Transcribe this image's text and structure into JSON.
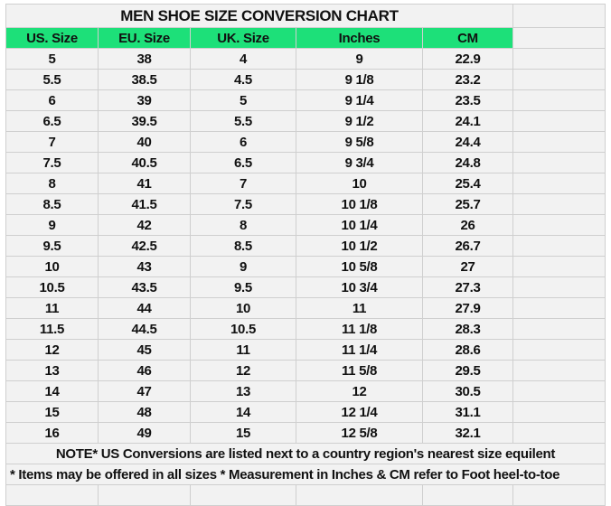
{
  "title": "MEN SHOE SIZE CONVERSION CHART",
  "columns": [
    "US. Size",
    "EU. Size",
    "UK. Size",
    "Inches",
    "CM"
  ],
  "rows": [
    [
      "5",
      "38",
      "4",
      "9",
      "22.9"
    ],
    [
      "5.5",
      "38.5",
      "4.5",
      "9 1/8",
      "23.2"
    ],
    [
      "6",
      "39",
      "5",
      "9 1/4",
      "23.5"
    ],
    [
      "6.5",
      "39.5",
      "5.5",
      "9 1/2",
      "24.1"
    ],
    [
      "7",
      "40",
      "6",
      "9 5/8",
      "24.4"
    ],
    [
      "7.5",
      "40.5",
      "6.5",
      "9 3/4",
      "24.8"
    ],
    [
      "8",
      "41",
      "7",
      "10",
      "25.4"
    ],
    [
      "8.5",
      "41.5",
      "7.5",
      "10 1/8",
      "25.7"
    ],
    [
      "9",
      "42",
      "8",
      "10 1/4",
      "26"
    ],
    [
      "9.5",
      "42.5",
      "8.5",
      "10 1/2",
      "26.7"
    ],
    [
      "10",
      "43",
      "9",
      "10 5/8",
      "27"
    ],
    [
      "10.5",
      "43.5",
      "9.5",
      "10 3/4",
      "27.3"
    ],
    [
      "11",
      "44",
      "10",
      "11",
      "27.9"
    ],
    [
      "11.5",
      "44.5",
      "10.5",
      "11 1/8",
      "28.3"
    ],
    [
      "12",
      "45",
      "11",
      "11 1/4",
      "28.6"
    ],
    [
      "13",
      "46",
      "12",
      "11 5/8",
      "29.5"
    ],
    [
      "14",
      "47",
      "13",
      "12",
      "30.5"
    ],
    [
      "15",
      "48",
      "14",
      "12 1/4",
      "31.1"
    ],
    [
      "16",
      "49",
      "15",
      "12 5/8",
      "32.1"
    ]
  ],
  "note1": "NOTE* US Conversions are listed next to a country region's nearest size equilent",
  "note2": "* Items may be offered in all sizes * Measurement in Inches & CM refer to Foot heel-to-toe",
  "colors": {
    "title": "#22dd77",
    "header_bg": "#1de079",
    "sheet_bg": "#f2f2f2",
    "grid": "#cfcfcf"
  }
}
